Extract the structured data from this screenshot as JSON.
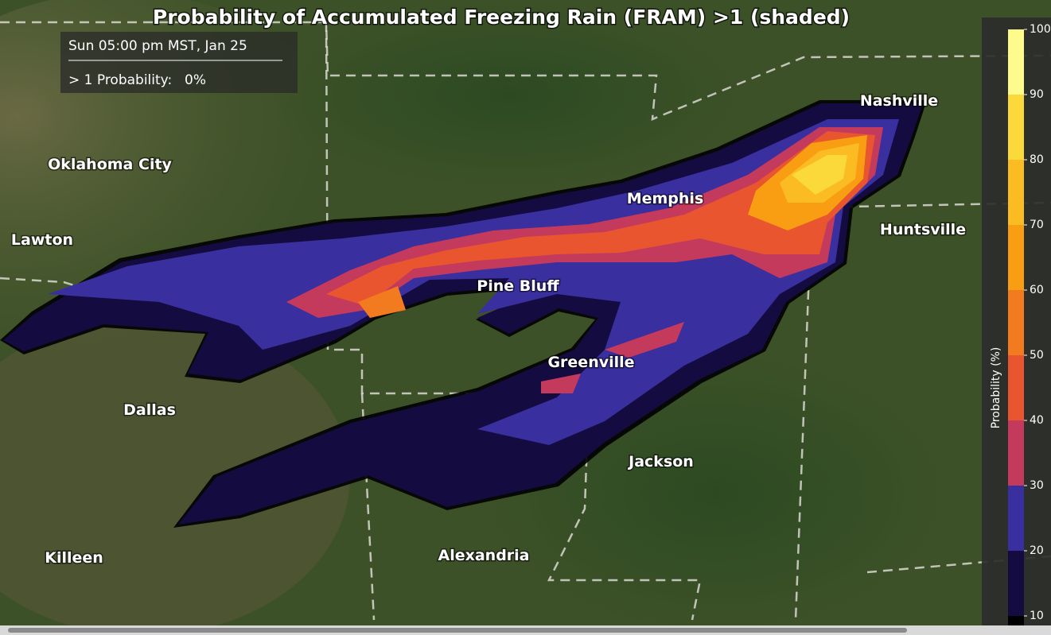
{
  "header": {
    "title": "Probability of Accumulated Freezing Rain (FRAM) >1 (shaded)"
  },
  "info_box": {
    "time": "Sun 05:00 pm MST, Jan 25",
    "probability_label": "> 1 Probability:",
    "probability_value": "0%"
  },
  "cities": [
    "Nashville",
    "Oklahoma City",
    "Memphis",
    "Huntsville",
    "Lawton",
    "Pine Bluff",
    "Greenville",
    "Dallas",
    "Jackson",
    "Killeen",
    "Alexandria"
  ],
  "colorbar": {
    "label": "Probability (%)",
    "ticks": [
      10,
      20,
      30,
      40,
      50,
      60,
      70,
      80,
      90,
      100
    ],
    "colors": [
      "#140b40",
      "#3a2f9e",
      "#c43a5c",
      "#e8552f",
      "#f27a1f",
      "#f99d12",
      "#fbbb22",
      "#fcd93a",
      "#fdfb8c"
    ]
  }
}
